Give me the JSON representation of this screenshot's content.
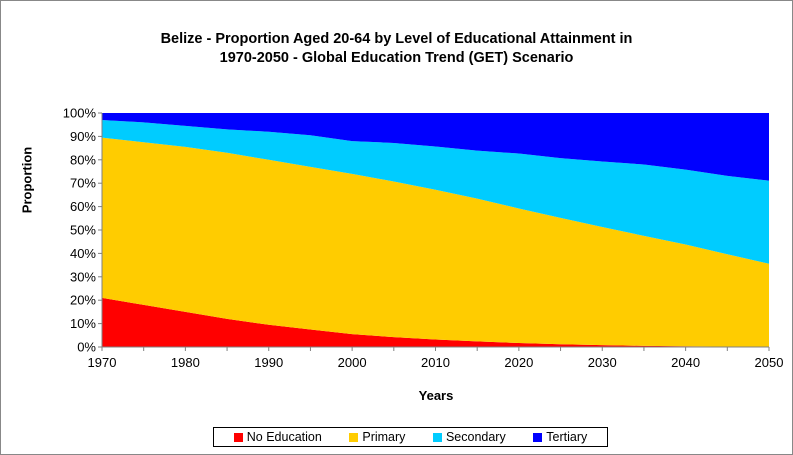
{
  "chart_data": {
    "type": "area",
    "stacked": true,
    "title_line1": "Belize - Proportion Aged 20-64 by Level of Educational Attainment in",
    "title_line2": "1970-2050 - Global Education Trend (GET) Scenario",
    "xlabel": "Years",
    "ylabel": "Proportion",
    "x": [
      1970,
      1975,
      1980,
      1985,
      1990,
      1995,
      2000,
      2005,
      2010,
      2015,
      2020,
      2025,
      2030,
      2035,
      2040,
      2045,
      2050
    ],
    "x_ticks": [
      "1970",
      "1980",
      "1990",
      "2000",
      "2010",
      "2020",
      "2030",
      "2040",
      "2050"
    ],
    "y_ticks": [
      "0%",
      "10%",
      "20%",
      "30%",
      "40%",
      "50%",
      "60%",
      "70%",
      "80%",
      "90%",
      "100%"
    ],
    "ylim": [
      0,
      100
    ],
    "grid": false,
    "legend_position": "bottom",
    "series": [
      {
        "name": "No Education",
        "color": "#FF0000",
        "values": [
          21,
          18,
          15,
          12,
          9.5,
          7.5,
          5.5,
          4.2,
          3.2,
          2.4,
          1.7,
          1.2,
          0.8,
          0.5,
          0.3,
          0.15,
          0.1
        ]
      },
      {
        "name": "Primary",
        "color": "#FFCC00",
        "values": [
          68.5,
          69.5,
          70.5,
          71,
          70.5,
          69.5,
          68.5,
          66.5,
          64,
          61,
          57.5,
          54,
          50.5,
          47,
          43.5,
          39.5,
          35.5
        ]
      },
      {
        "name": "Secondary",
        "color": "#00CCFF",
        "values": [
          7.5,
          8.5,
          9,
          10,
          12,
          13.5,
          14,
          16.5,
          18.5,
          20.5,
          23.5,
          25.5,
          28,
          30.5,
          32,
          33.5,
          35.5
        ]
      },
      {
        "name": "Tertiary",
        "color": "#0000FF",
        "values": [
          3,
          4,
          5.5,
          7,
          8,
          9.5,
          12,
          12.8,
          14.3,
          16.1,
          17.3,
          19.3,
          20.7,
          22,
          24.2,
          26.85,
          28.9
        ]
      }
    ]
  }
}
